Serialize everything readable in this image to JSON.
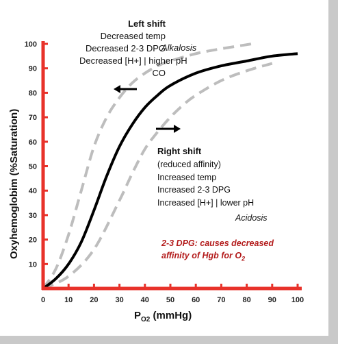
{
  "chart_data": {
    "type": "line",
    "xlabel": "P",
    "xlabel_sub": "O2",
    "xlabel_unit": "(mmHg)",
    "ylabel": "Oxyhemoglobim  (%Saturation)",
    "xlim": [
      0,
      100
    ],
    "ylim": [
      0,
      100
    ],
    "x_ticks": [
      0,
      10,
      20,
      30,
      40,
      50,
      60,
      70,
      80,
      90,
      100
    ],
    "y_ticks": [
      10,
      20,
      30,
      40,
      50,
      60,
      70,
      80,
      90,
      100
    ],
    "axis_color": "#e8322a",
    "series": [
      {
        "style": "solid",
        "color": "#000000",
        "x": [
          0,
          5,
          10,
          15,
          20,
          25,
          30,
          35,
          40,
          45,
          50,
          60,
          70,
          80,
          90,
          100
        ],
        "y": [
          0,
          4,
          10,
          19,
          32,
          46,
          58,
          67,
          74,
          79,
          83,
          88,
          91,
          93,
          95,
          96
        ]
      },
      {
        "style": "dashed",
        "color": "#bdbdbd",
        "x": [
          0,
          5,
          10,
          15,
          20,
          25,
          30,
          35,
          40,
          45,
          50,
          60,
          70,
          82
        ],
        "y": [
          0,
          8,
          22,
          40,
          58,
          70,
          78,
          84,
          88,
          91,
          93,
          96,
          98,
          100
        ]
      },
      {
        "style": "dashed",
        "color": "#bdbdbd",
        "x": [
          0,
          10,
          20,
          30,
          35,
          40,
          45,
          50,
          55,
          60,
          70,
          80,
          90
        ],
        "y": [
          0,
          5,
          16,
          36,
          47,
          57,
          64,
          70,
          75,
          79,
          85,
          89,
          92
        ]
      }
    ],
    "annotations": {
      "left_shift": {
        "title": "Left shift",
        "lines": [
          "Decreased temp",
          "Decreased 2-3 DPG",
          "Decreased [H+] | higher pH",
          "CO"
        ],
        "tag": "Alkalosis"
      },
      "right_shift": {
        "title": "Right shift",
        "lines": [
          "(reduced affinity)",
          "Increased temp",
          "Increased 2-3 DPG",
          "Increased [H+]  | lower pH"
        ],
        "tag": "Acidosis"
      },
      "note": {
        "line1": "2-3 DPG: causes decreased",
        "line2": "affinity of Hgb for O",
        "line2_sub": "2"
      }
    }
  }
}
